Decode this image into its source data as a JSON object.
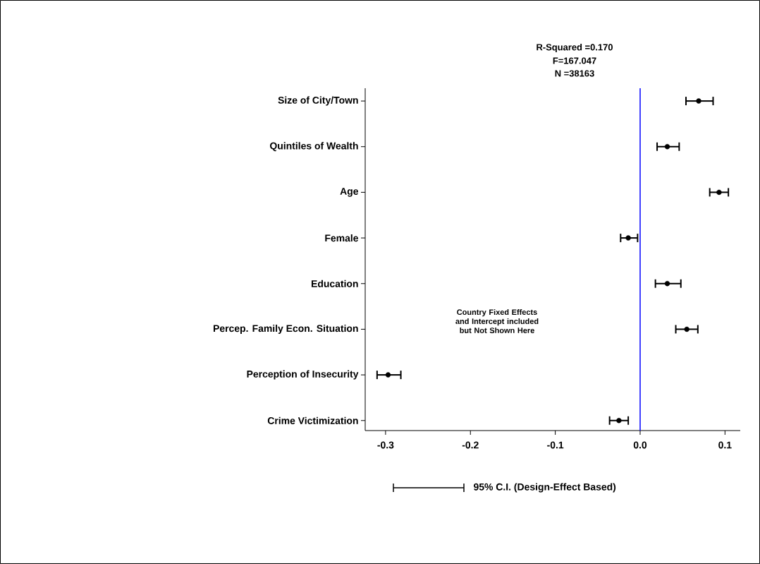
{
  "chart_data": {
    "type": "scatter",
    "orientation": "horizontal",
    "title": "R-Squared =0.170",
    "annotations": [
      "F=167.047",
      "N =38163",
      "Country Fixed Effects and Intercept included but Not Shown Here"
    ],
    "categories": [
      "Size of City/Town",
      "Quintiles of Wealth",
      "Age",
      "Female",
      "Education",
      "Percep. Family Econ. Situation",
      "Perception of Insecurity",
      "Crime Victimization"
    ],
    "series": [
      {
        "name": "95% C.I. (Design-Effect Based)",
        "color": "#000000",
        "values": [
          0.069,
          0.032,
          0.093,
          -0.014,
          0.032,
          0.055,
          -0.297,
          -0.025
        ],
        "errors": [
          [
            0.054,
            0.086
          ],
          [
            0.02,
            0.046
          ],
          [
            0.082,
            0.104
          ],
          [
            -0.023,
            -0.003
          ],
          [
            0.018,
            0.048
          ],
          [
            0.042,
            0.068
          ],
          [
            -0.31,
            -0.282
          ],
          [
            -0.036,
            -0.014
          ]
        ]
      }
    ],
    "xlim": [
      -0.324,
      0.118
    ],
    "xticks": [
      {
        "value": -0.3,
        "label": "-0.3"
      },
      {
        "value": -0.2,
        "label": "-0.2"
      },
      {
        "value": -0.1,
        "label": "-0.1"
      },
      {
        "value": 0,
        "label": "0.0"
      },
      {
        "value": 0.1,
        "label": "0.1"
      }
    ],
    "ref_lines": [
      {
        "axis": "x",
        "value": 0,
        "color": "#0000ff"
      }
    ],
    "marker": "circle",
    "legend": "bottom",
    "grid": false
  }
}
